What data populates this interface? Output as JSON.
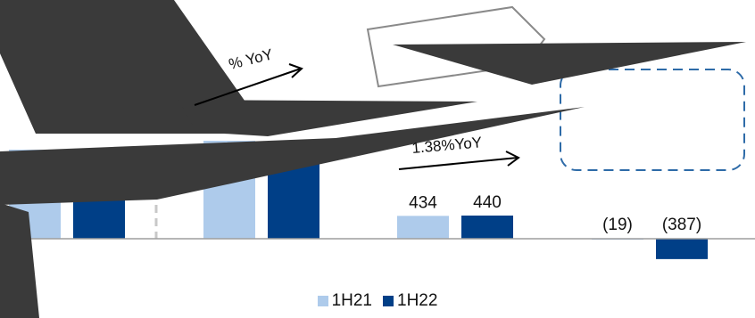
{
  "chart_data": {
    "type": "bar",
    "categories": [
      "",
      "",
      "",
      ""
    ],
    "series": [
      {
        "name": "1H21",
        "color": "#aecbeb",
        "values": [
          null,
          null,
          434,
          -19
        ]
      },
      {
        "name": "1H22",
        "color": "#003f87",
        "values": [
          null,
          null,
          440,
          -387
        ]
      }
    ],
    "data_labels": {
      "1H21": [
        "",
        "",
        "434",
        "(19)"
      ],
      "1H22": [
        "",
        "",
        "440",
        "(387)"
      ]
    },
    "annotations": [
      "% YoY",
      "1.38%YoY"
    ],
    "legend": {
      "position": "bottom",
      "entries": [
        "1H21",
        "1H22"
      ]
    },
    "grid": false
  }
}
